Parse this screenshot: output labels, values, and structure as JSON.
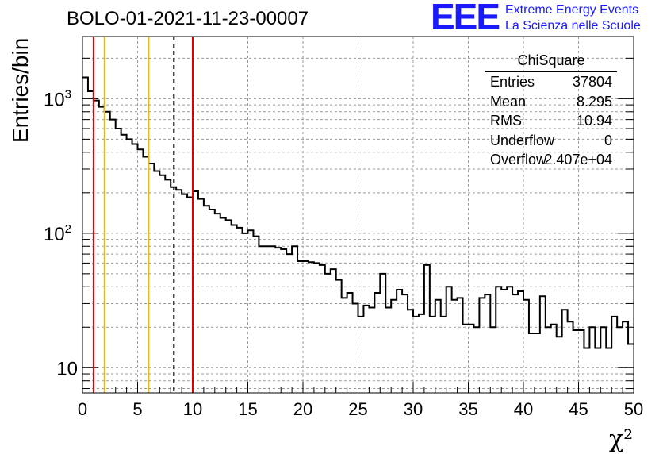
{
  "title": "BOLO-01-2021-11-23-00007",
  "logo": {
    "mark": "EEE",
    "line1": "Extreme Energy Events",
    "line2": "La Scienza nelle Scuole",
    "color": "#1a1aff"
  },
  "stats_box": {
    "title": "ChiSquare",
    "rows": [
      {
        "key": "Entries",
        "value": "37804"
      },
      {
        "key": "Mean",
        "value": "8.295"
      },
      {
        "key": "RMS",
        "value": "10.94"
      },
      {
        "key": "Underflow",
        "value": "0"
      },
      {
        "key": "Overflow",
        "value": "2.407e+04"
      }
    ]
  },
  "chart_data": {
    "type": "histogram",
    "title": "BOLO-01-2021-11-23-00007",
    "xlabel": "χ²",
    "ylabel": "Entries/bin",
    "xlim": [
      0,
      50
    ],
    "ylim": [
      6.5,
      2900
    ],
    "log_y": true,
    "grid": true,
    "bin_width": 0.5,
    "x_ticks": [
      "0",
      "5",
      "10",
      "15",
      "20",
      "25",
      "30",
      "35",
      "40",
      "45",
      "50"
    ],
    "y_ticks": [
      {
        "value": 10,
        "label": "10"
      },
      {
        "value": 100,
        "label": "10²"
      },
      {
        "value": 1000,
        "label": "10³"
      }
    ],
    "values": [
      1440,
      1135,
      970,
      870,
      800,
      700,
      600,
      540,
      500,
      460,
      420,
      370,
      330,
      290,
      270,
      250,
      220,
      210,
      195,
      185,
      205,
      180,
      160,
      150,
      140,
      130,
      125,
      115,
      110,
      100,
      105,
      95,
      80,
      80,
      80,
      78,
      76,
      70,
      80,
      62,
      62,
      61,
      60,
      58,
      50,
      54,
      45,
      33,
      36,
      30,
      24,
      29,
      28,
      36,
      50,
      28,
      32,
      38,
      35,
      27,
      24,
      25,
      58,
      24,
      32,
      24,
      40,
      32,
      33,
      21,
      21,
      20,
      33,
      35,
      20,
      40,
      38,
      40,
      35,
      37,
      32,
      18,
      18,
      34,
      20,
      21,
      17,
      27,
      22,
      19,
      19,
      14,
      20,
      14,
      20,
      14,
      24,
      20,
      22,
      15
    ],
    "vertical_lines": [
      {
        "x": 1,
        "color": "#e00000",
        "style": "solid"
      },
      {
        "x": 2,
        "color": "#f0b800",
        "style": "solid"
      },
      {
        "x": 6,
        "color": "#f0b800",
        "style": "solid"
      },
      {
        "x": 8.295,
        "color": "#000000",
        "style": "dashed"
      },
      {
        "x": 10,
        "color": "#e00000",
        "style": "solid"
      }
    ]
  }
}
